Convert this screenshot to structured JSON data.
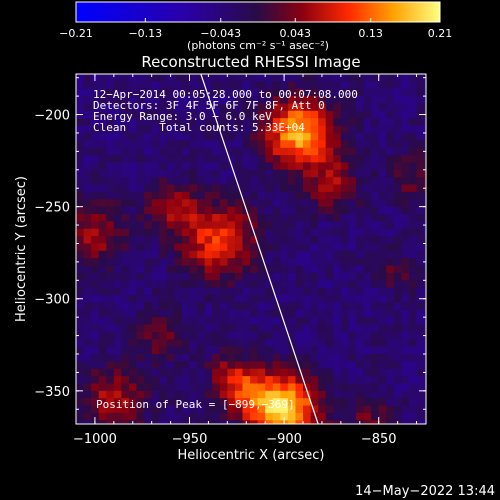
{
  "chart_data": {
    "type": "heatmap",
    "title": "Reconstructed RHESSI Image",
    "xlabel": "Heliocentric X (arcsec)",
    "ylabel": "Heliocentric Y (arcsec)",
    "xlim": [
      -1010,
      -825
    ],
    "ylim": [
      -368,
      -178
    ],
    "x_ticks": [
      -1000,
      -950,
      -900,
      -850
    ],
    "x_tick_labels": [
      "−1000",
      "−950",
      "−900",
      "−850"
    ],
    "y_ticks": [
      -200,
      -250,
      -300,
      -350
    ],
    "y_tick_labels": [
      "−200",
      "−250",
      "−300",
      "−350"
    ],
    "colorbar": {
      "min": -0.21,
      "max": 0.21,
      "tick_values": [
        -0.21,
        -0.13,
        -0.043,
        0.043,
        0.13,
        0.21
      ],
      "tick_labels": [
        "−0.21",
        "−0.13",
        "−0.043",
        "0.043",
        "0.13",
        "0.21"
      ],
      "units_label": "(photons cm⁻² s⁻¹ asec⁻²)"
    },
    "info_lines": [
      "12−Apr−2014 00:05:28.000 to 00:07:08.000",
      "Detectors: 3F 4F 5F 6F 7F 8F, Att 0",
      "Energy Range: 3.0 − 6.0 keV",
      "Clean     Total counts: 5.33E+04"
    ],
    "peak_label": "Position of Peak = [−899,−369]",
    "peak": [
      -899,
      -369
    ],
    "limb_line": [
      [
        -944,
        -178
      ],
      [
        -882,
        -368
      ]
    ],
    "sources": [
      {
        "x": -892,
        "y": -210,
        "amp": 0.2,
        "r": 13
      },
      {
        "x": -875,
        "y": -238,
        "amp": 0.09,
        "r": 10
      },
      {
        "x": -935,
        "y": -268,
        "amp": 0.14,
        "r": 14
      },
      {
        "x": -960,
        "y": -250,
        "amp": 0.08,
        "r": 10
      },
      {
        "x": -1000,
        "y": -265,
        "amp": 0.09,
        "r": 12
      },
      {
        "x": -990,
        "y": -355,
        "amp": 0.1,
        "r": 12
      },
      {
        "x": -965,
        "y": -320,
        "amp": 0.07,
        "r": 9
      },
      {
        "x": -900,
        "y": -360,
        "amp": 0.22,
        "r": 13
      },
      {
        "x": -920,
        "y": -350,
        "amp": 0.1,
        "r": 10
      },
      {
        "x": -855,
        "y": -368,
        "amp": 0.07,
        "r": 9
      },
      {
        "x": -930,
        "y": -340,
        "amp": 0.06,
        "r": 8
      },
      {
        "x": -830,
        "y": -235,
        "amp": 0.06,
        "r": 10
      },
      {
        "x": -840,
        "y": -285,
        "amp": 0.05,
        "r": 8
      }
    ]
  },
  "footer": {
    "timestamp": "14−May−2022 13:44"
  }
}
